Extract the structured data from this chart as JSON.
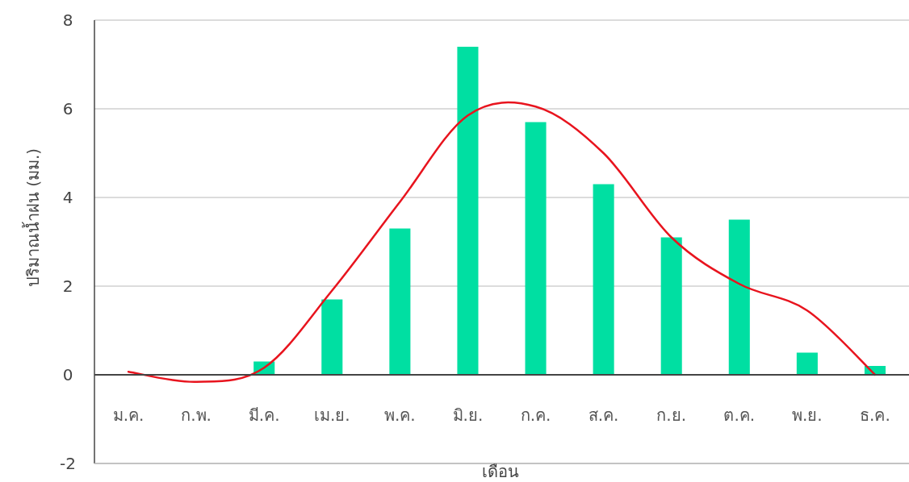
{
  "chart_data": {
    "type": "bar",
    "xlabel": "เดือน",
    "ylabel": "ปริมาณน้ำฝน (มม.)",
    "categories": [
      "ม.ค.",
      "ก.พ.",
      "มี.ค.",
      "เม.ย.",
      "พ.ค.",
      "มิ.ย.",
      "ก.ค.",
      "ส.ค.",
      "ก.ย.",
      "ต.ค.",
      "พ.ย.",
      "ธ.ค."
    ],
    "series": [
      {
        "color": "#00dfa2",
        "values": [
          0,
          0,
          0.3,
          1.7,
          3.3,
          7.4,
          5.7,
          4.3,
          3.1,
          3.5,
          0.5,
          0.2
        ]
      },
      {
        "type": "line",
        "color": "#e8141e",
        "values": [
          0.07,
          -0.16,
          0.16,
          1.9,
          3.9,
          5.85,
          6.05,
          5.0,
          3.1,
          2.05,
          1.45,
          0
        ]
      }
    ],
    "ylim": [
      -2,
      8
    ],
    "yticks": [
      -2,
      0,
      2,
      4,
      6,
      8
    ],
    "grid": "y"
  }
}
